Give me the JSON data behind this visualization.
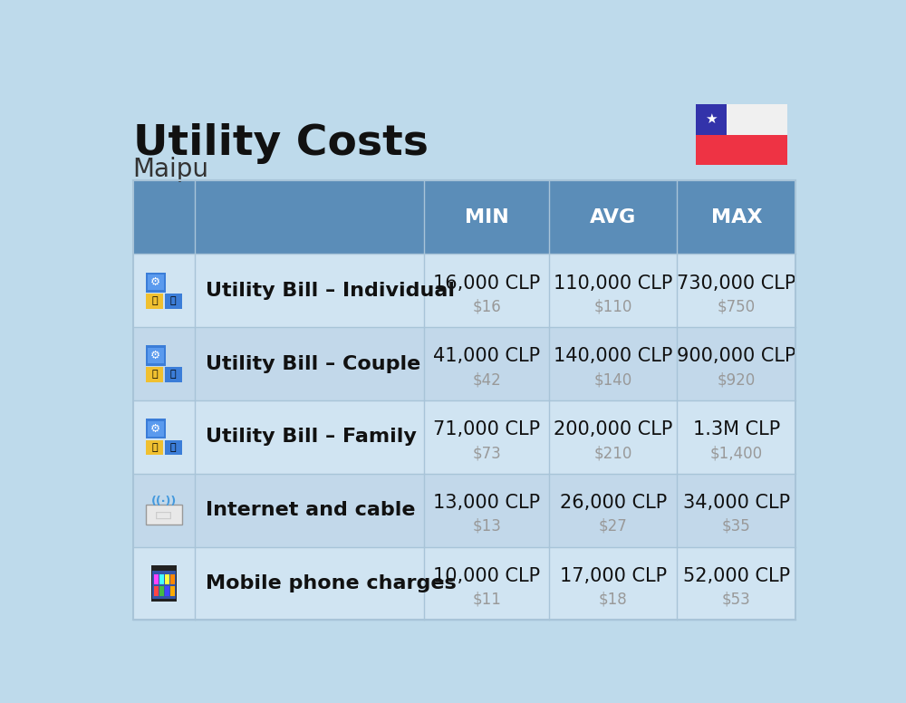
{
  "title": "Utility Costs",
  "subtitle": "Maipu",
  "background_color": "#BEDAEB",
  "header_bg_color": "#5B8DB8",
  "header_text_color": "#FFFFFF",
  "row_bg_light": "#D0E4F2",
  "row_bg_medium": "#C2D8EA",
  "cell_border_color": "#A8C4D8",
  "col_header_labels": [
    "MIN",
    "AVG",
    "MAX"
  ],
  "rows": [
    {
      "label": "Utility Bill – Individual",
      "min_clp": "16,000 CLP",
      "min_usd": "$16",
      "avg_clp": "110,000 CLP",
      "avg_usd": "$110",
      "max_clp": "730,000 CLP",
      "max_usd": "$750"
    },
    {
      "label": "Utility Bill – Couple",
      "min_clp": "41,000 CLP",
      "min_usd": "$42",
      "avg_clp": "140,000 CLP",
      "avg_usd": "$140",
      "max_clp": "900,000 CLP",
      "max_usd": "$920"
    },
    {
      "label": "Utility Bill – Family",
      "min_clp": "71,000 CLP",
      "min_usd": "$73",
      "avg_clp": "200,000 CLP",
      "avg_usd": "$210",
      "max_clp": "1.3M CLP",
      "max_usd": "$1,400"
    },
    {
      "label": "Internet and cable",
      "min_clp": "13,000 CLP",
      "min_usd": "$13",
      "avg_clp": "26,000 CLP",
      "avg_usd": "$27",
      "max_clp": "34,000 CLP",
      "max_usd": "$35"
    },
    {
      "label": "Mobile phone charges",
      "min_clp": "10,000 CLP",
      "min_usd": "$11",
      "avg_clp": "17,000 CLP",
      "avg_usd": "$18",
      "max_clp": "52,000 CLP",
      "max_usd": "$53"
    }
  ],
  "title_fontsize": 34,
  "subtitle_fontsize": 20,
  "header_fontsize": 16,
  "row_label_fontsize": 16,
  "cell_clp_fontsize": 15,
  "cell_usd_fontsize": 12,
  "usd_color": "#999999",
  "flag_blue": "#3333AA",
  "flag_white": "#F0F0F0",
  "flag_red": "#EE3344"
}
